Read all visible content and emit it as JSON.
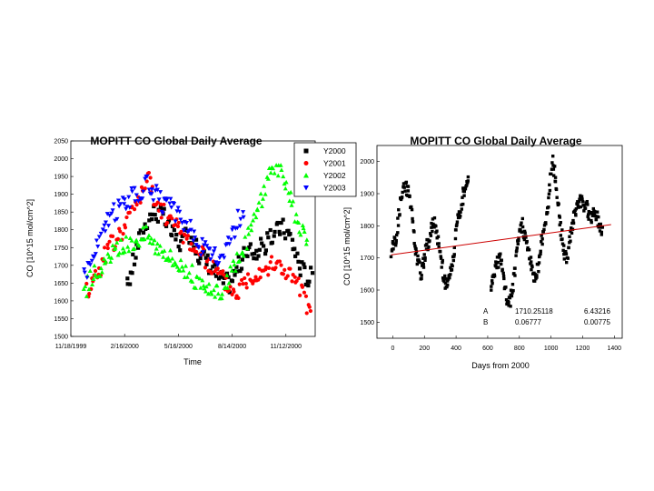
{
  "colors": {
    "Y2000": "#000000",
    "Y2001": "#ff0000",
    "Y2002": "#00ff00",
    "Y2003": "#0000ff",
    "fit_line": "#cc0000"
  },
  "chart_data": [
    {
      "type": "scatter",
      "title": "MOPITT CO Global Daily Average",
      "xlabel": "Time",
      "ylabel": "CO [10^15 mol/cm^2]",
      "x_is_date": true,
      "xlim": [
        "1999-11-18",
        "2000-12-31"
      ],
      "ylim": [
        1500,
        2050
      ],
      "y_ticks": [
        1500,
        1550,
        1600,
        1650,
        1700,
        1750,
        1800,
        1850,
        1900,
        1950,
        2000,
        2050
      ],
      "x_tick_labels": [
        "11/18/1999",
        "2/16/2000",
        "5/16/2000",
        "8/14/2000",
        "11/12/2000"
      ],
      "x_tick_dates": [
        "1999-11-18",
        "2000-02-16",
        "2000-05-16",
        "2000-08-14",
        "2000-11-12"
      ],
      "legend_position": "top-right, outside plot",
      "grid": false,
      "series": [
        {
          "name": "Y2000",
          "marker": "square",
          "points": [
            [
              "2000-02-20",
              1640
            ],
            [
              "2000-03-10",
              1760
            ],
            [
              "2000-03-25",
              1830
            ],
            [
              "2000-04-05",
              1850
            ],
            [
              "2000-04-20",
              1840
            ],
            [
              "2000-05-05",
              1790
            ],
            [
              "2000-05-20",
              1760
            ],
            [
              "2000-06-05",
              1790
            ],
            [
              "2000-06-20",
              1730
            ],
            [
              "2000-07-05",
              1710
            ],
            [
              "2000-07-25",
              1660
            ],
            [
              "2000-08-10",
              1650
            ],
            [
              "2000-08-25",
              1700
            ],
            [
              "2000-09-10",
              1740
            ],
            [
              "2000-09-25",
              1740
            ],
            [
              "2000-10-10",
              1760
            ],
            [
              "2000-10-25",
              1790
            ],
            [
              "2000-11-05",
              1810
            ],
            [
              "2000-11-20",
              1780
            ],
            [
              "2000-12-05",
              1700
            ],
            [
              "2000-12-20",
              1660
            ],
            [
              "2000-12-28",
              1680
            ]
          ]
        },
        {
          "name": "Y2001",
          "marker": "circle",
          "points": [
            [
              "1999-12-15",
              1630
            ],
            [
              "2000-01-05",
              1690
            ],
            [
              "2000-01-20",
              1750
            ],
            [
              "2000-02-05",
              1780
            ],
            [
              "2000-02-20",
              1820
            ],
            [
              "2000-03-05",
              1880
            ],
            [
              "2000-03-20",
              1910
            ],
            [
              "2000-03-28",
              1950
            ],
            [
              "2000-04-05",
              1880
            ],
            [
              "2000-08-20",
              1620
            ],
            [
              "2000-09-01",
              1650
            ],
            [
              "2000-09-15",
              1670
            ],
            [
              "2000-10-01",
              1690
            ],
            [
              "2000-10-15",
              1700
            ],
            [
              "2000-11-01",
              1700
            ],
            [
              "2000-11-15",
              1680
            ],
            [
              "2000-12-01",
              1650
            ],
            [
              "2000-12-15",
              1600
            ],
            [
              "2000-12-25",
              1560
            ]
          ]
        },
        {
          "name": "Y2002",
          "marker": "triangle-up",
          "points": [
            [
              "1999-12-10",
              1620
            ],
            [
              "1999-12-25",
              1680
            ],
            [
              "2000-01-10",
              1690
            ],
            [
              "2000-01-25",
              1730
            ],
            [
              "2000-02-10",
              1750
            ],
            [
              "2000-02-25",
              1760
            ],
            [
              "2000-03-10",
              1780
            ],
            [
              "2000-03-25",
              1790
            ],
            [
              "2000-04-05",
              1760
            ],
            [
              "2000-04-20",
              1750
            ],
            [
              "2000-05-05",
              1720
            ],
            [
              "2000-05-20",
              1700
            ],
            [
              "2000-06-05",
              1680
            ],
            [
              "2000-06-20",
              1640
            ],
            [
              "2000-07-05",
              1620
            ],
            [
              "2000-07-20",
              1620
            ],
            [
              "2000-08-05",
              1650
            ],
            [
              "2000-08-20",
              1700
            ],
            [
              "2000-09-05",
              1760
            ],
            [
              "2000-09-20",
              1830
            ],
            [
              "2000-10-05",
              1900
            ],
            [
              "2000-10-20",
              1990
            ],
            [
              "2000-11-05",
              1950
            ],
            [
              "2000-11-20",
              1880
            ],
            [
              "2000-12-05",
              1800
            ],
            [
              "2000-12-20",
              1750
            ]
          ]
        },
        {
          "name": "Y2003",
          "marker": "triangle-down",
          "points": [
            [
              "1999-12-10",
              1680
            ],
            [
              "1999-12-25",
              1720
            ],
            [
              "2000-01-10",
              1790
            ],
            [
              "2000-01-25",
              1840
            ],
            [
              "2000-02-10",
              1870
            ],
            [
              "2000-02-25",
              1890
            ],
            [
              "2000-03-10",
              1900
            ],
            [
              "2000-03-25",
              1930
            ],
            [
              "2000-04-05",
              1910
            ],
            [
              "2000-04-20",
              1870
            ],
            [
              "2000-05-05",
              1860
            ],
            [
              "2000-05-20",
              1830
            ],
            [
              "2000-06-05",
              1800
            ],
            [
              "2000-06-20",
              1760
            ],
            [
              "2000-07-05",
              1730
            ],
            [
              "2000-07-20",
              1720
            ],
            [
              "2000-08-05",
              1760
            ],
            [
              "2000-08-20",
              1810
            ],
            [
              "2000-09-05",
              1870
            ]
          ]
        }
      ]
    },
    {
      "type": "scatter",
      "title": "MOPITT CO Global Daily Average",
      "xlabel": "Days from 2000",
      "ylabel": "CO [10^15 mol/cm^2]",
      "xlim": [
        -100,
        1450
      ],
      "ylim": [
        1450,
        2050
      ],
      "x_ticks": [
        0,
        200,
        400,
        600,
        800,
        1000,
        1200,
        1400
      ],
      "y_ticks": [
        1500,
        1600,
        1700,
        1800,
        1900,
        2000
      ],
      "grid": false,
      "series": [
        {
          "name": "",
          "marker": "square",
          "points": [
            [
              -10,
              1720
            ],
            [
              20,
              1760
            ],
            [
              50,
              1880
            ],
            [
              80,
              1930
            ],
            [
              100,
              1900
            ],
            [
              120,
              1850
            ],
            [
              140,
              1730
            ],
            [
              160,
              1690
            ],
            [
              180,
              1650
            ],
            [
              200,
              1700
            ],
            [
              230,
              1760
            ],
            [
              260,
              1820
            ],
            [
              290,
              1740
            ],
            [
              310,
              1690
            ],
            [
              330,
              1620
            ],
            [
              350,
              1620
            ],
            [
              380,
              1690
            ],
            [
              400,
              1780
            ],
            [
              430,
              1860
            ],
            [
              460,
              1930
            ],
            [
              480,
              1960
            ],
            [
              620,
              1600
            ],
            [
              650,
              1680
            ],
            [
              680,
              1700
            ],
            [
              700,
              1640
            ],
            [
              720,
              1570
            ],
            [
              740,
              1560
            ],
            [
              760,
              1620
            ],
            [
              780,
              1700
            ],
            [
              800,
              1780
            ],
            [
              820,
              1800
            ],
            [
              840,
              1760
            ],
            [
              860,
              1720
            ],
            [
              880,
              1660
            ],
            [
              900,
              1640
            ],
            [
              920,
              1680
            ],
            [
              950,
              1780
            ],
            [
              980,
              1860
            ],
            [
              1000,
              1960
            ],
            [
              1010,
              2000
            ],
            [
              1030,
              1940
            ],
            [
              1060,
              1800
            ],
            [
              1080,
              1720
            ],
            [
              1100,
              1700
            ],
            [
              1130,
              1790
            ],
            [
              1160,
              1860
            ],
            [
              1190,
              1880
            ],
            [
              1220,
              1860
            ],
            [
              1250,
              1830
            ],
            [
              1280,
              1840
            ],
            [
              1310,
              1800
            ],
            [
              1330,
              1780
            ]
          ]
        }
      ],
      "fit_line": {
        "intercept": 1710.25118,
        "slope": 0.06777,
        "x_range": [
          -10,
          1380
        ]
      },
      "fit_params": [
        {
          "name": "A",
          "value": "1710.25118",
          "error": "6.43216"
        },
        {
          "name": "B",
          "value": "0.06777",
          "error": "0.00775"
        }
      ]
    }
  ]
}
